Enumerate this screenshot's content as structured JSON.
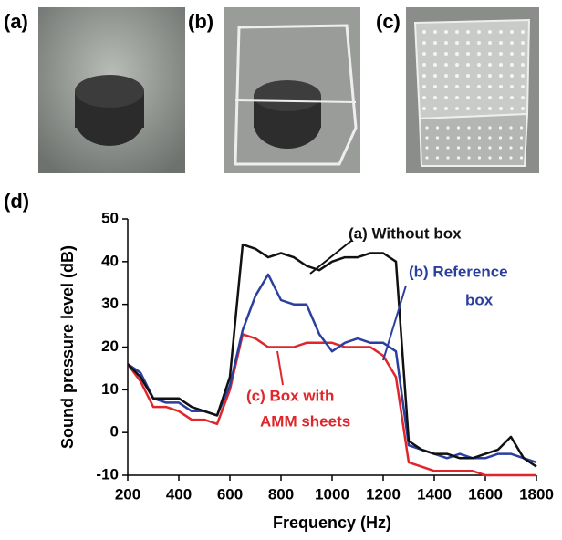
{
  "panel_labels": [
    "(a)",
    "(b)",
    "(c)",
    "(d)"
  ],
  "chart_data": {
    "type": "line",
    "xlabel": "Frequency (Hz)",
    "ylabel": "Sound pressure level (dB)",
    "xlim": [
      200,
      1800
    ],
    "xticks": [
      200,
      400,
      600,
      800,
      1000,
      1200,
      1400,
      1600,
      1800
    ],
    "ylim": [
      -10,
      50
    ],
    "yticks": [
      -10,
      0,
      10,
      20,
      30,
      40,
      50
    ],
    "x": [
      200,
      250,
      300,
      350,
      400,
      450,
      500,
      550,
      600,
      650,
      700,
      750,
      800,
      850,
      900,
      950,
      1000,
      1050,
      1100,
      1150,
      1200,
      1250,
      1300,
      1350,
      1400,
      1450,
      1500,
      1550,
      1600,
      1650,
      1700,
      1750,
      1800
    ],
    "series": [
      {
        "color": "#111111",
        "values": [
          16,
          13,
          8,
          8,
          8,
          6,
          5,
          4,
          13,
          44,
          43,
          41,
          42,
          41,
          39,
          38,
          40,
          41,
          41,
          42,
          42,
          40,
          -2,
          -4,
          -5,
          -5,
          -6,
          -6,
          -5,
          -4,
          -1,
          -6,
          -8
        ]
      },
      {
        "color": "#2b3f9e",
        "values": [
          16,
          14,
          8,
          7,
          7,
          5,
          5,
          4,
          11,
          24,
          32,
          37,
          31,
          30,
          30,
          23,
          19,
          21,
          22,
          21,
          21,
          19,
          -3,
          -4,
          -5,
          -6,
          -5,
          -6,
          -6,
          -5,
          -5,
          -6,
          -7
        ]
      },
      {
        "color": "#e0262b",
        "values": [
          16,
          12,
          6,
          6,
          5,
          3,
          3,
          2,
          10,
          23,
          22,
          20,
          20,
          20,
          21,
          21,
          21,
          20,
          20,
          20,
          18,
          13,
          -7,
          -8,
          -9,
          -9,
          -9,
          -9,
          -10,
          -10,
          -10,
          -10,
          -10
        ]
      }
    ],
    "annotations": [
      {
        "lines": [
          "(a) Without box"
        ],
        "color": "#111111"
      },
      {
        "lines": [
          "(b) Reference",
          "box"
        ],
        "color": "#2b3f9e"
      },
      {
        "lines": [
          "(c) Box with",
          "AMM sheets"
        ],
        "color": "#e0262b"
      }
    ]
  }
}
